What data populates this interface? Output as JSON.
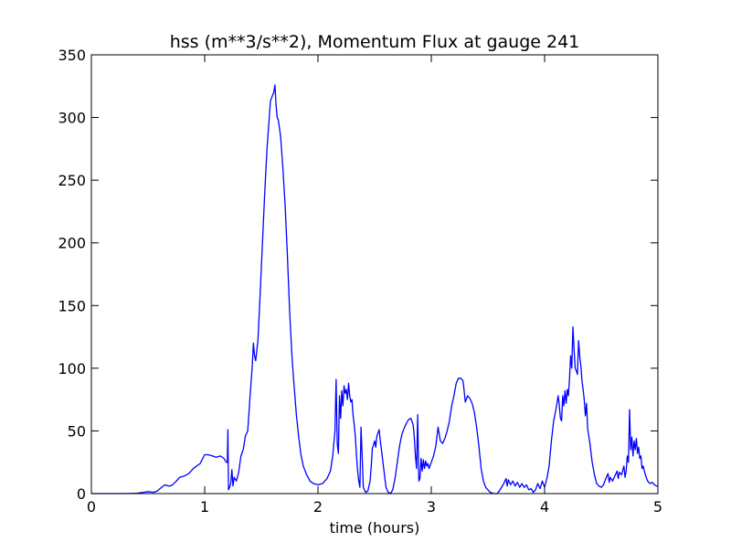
{
  "chart_data": {
    "type": "line",
    "title": "hss (m**3/s**2), Momentum Flux at gauge 241",
    "xlabel": "time (hours)",
    "ylabel": "",
    "xlim": [
      0,
      5
    ],
    "ylim": [
      0,
      350
    ],
    "x_ticks": [
      0,
      1,
      2,
      3,
      4,
      5
    ],
    "x_tick_labels": [
      "0",
      "1",
      "2",
      "3",
      "4",
      "5"
    ],
    "y_ticks": [
      0,
      50,
      100,
      150,
      200,
      250,
      300,
      350
    ],
    "y_tick_labels": [
      "0",
      "50",
      "100",
      "150",
      "200",
      "250",
      "300",
      "350"
    ],
    "grid": false,
    "legend": "none",
    "reference_line": {
      "y": 0,
      "style": "dashed",
      "color": "#000000"
    },
    "series": [
      {
        "color": "#0000ff",
        "points": [
          [
            0.0,
            0
          ],
          [
            0.3,
            0
          ],
          [
            0.4,
            0.3
          ],
          [
            0.46,
            1
          ],
          [
            0.5,
            1.5
          ],
          [
            0.55,
            1
          ],
          [
            0.58,
            2
          ],
          [
            0.62,
            5
          ],
          [
            0.65,
            7
          ],
          [
            0.68,
            6
          ],
          [
            0.71,
            6.5
          ],
          [
            0.75,
            10
          ],
          [
            0.78,
            13
          ],
          [
            0.82,
            14
          ],
          [
            0.86,
            16
          ],
          [
            0.9,
            20
          ],
          [
            0.93,
            22
          ],
          [
            0.96,
            24
          ],
          [
            1.0,
            31
          ],
          [
            1.03,
            31
          ],
          [
            1.07,
            30
          ],
          [
            1.1,
            29
          ],
          [
            1.14,
            30
          ],
          [
            1.17,
            28
          ],
          [
            1.19,
            25
          ],
          [
            1.2,
            25
          ],
          [
            1.205,
            51
          ],
          [
            1.21,
            3
          ],
          [
            1.22,
            5
          ],
          [
            1.23,
            8
          ],
          [
            1.24,
            19
          ],
          [
            1.25,
            6
          ],
          [
            1.26,
            13
          ],
          [
            1.28,
            10
          ],
          [
            1.3,
            17
          ],
          [
            1.32,
            30
          ],
          [
            1.34,
            35
          ],
          [
            1.36,
            46
          ],
          [
            1.38,
            50
          ],
          [
            1.4,
            77
          ],
          [
            1.42,
            102
          ],
          [
            1.43,
            120
          ],
          [
            1.44,
            110
          ],
          [
            1.45,
            106
          ],
          [
            1.47,
            122
          ],
          [
            1.49,
            160
          ],
          [
            1.51,
            200
          ],
          [
            1.53,
            240
          ],
          [
            1.55,
            275
          ],
          [
            1.57,
            300
          ],
          [
            1.58,
            313
          ],
          [
            1.6,
            318
          ],
          [
            1.61,
            320
          ],
          [
            1.62,
            326
          ],
          [
            1.63,
            310
          ],
          [
            1.64,
            300
          ],
          [
            1.65,
            298
          ],
          [
            1.67,
            285
          ],
          [
            1.69,
            260
          ],
          [
            1.71,
            230
          ],
          [
            1.73,
            190
          ],
          [
            1.75,
            145
          ],
          [
            1.77,
            110
          ],
          [
            1.79,
            85
          ],
          [
            1.81,
            62
          ],
          [
            1.83,
            45
          ],
          [
            1.85,
            31
          ],
          [
            1.87,
            22
          ],
          [
            1.9,
            15
          ],
          [
            1.93,
            10
          ],
          [
            1.96,
            8
          ],
          [
            2.0,
            7
          ],
          [
            2.04,
            8
          ],
          [
            2.08,
            12
          ],
          [
            2.11,
            18
          ],
          [
            2.13,
            30
          ],
          [
            2.15,
            50
          ],
          [
            2.16,
            91
          ],
          [
            2.17,
            40
          ],
          [
            2.18,
            32
          ],
          [
            2.19,
            78
          ],
          [
            2.2,
            60
          ],
          [
            2.21,
            82
          ],
          [
            2.22,
            70
          ],
          [
            2.23,
            86
          ],
          [
            2.24,
            80
          ],
          [
            2.25,
            83
          ],
          [
            2.26,
            75
          ],
          [
            2.27,
            88
          ],
          [
            2.28,
            78
          ],
          [
            2.29,
            73
          ],
          [
            2.3,
            75
          ],
          [
            2.31,
            62
          ],
          [
            2.32,
            55
          ],
          [
            2.33,
            45
          ],
          [
            2.34,
            30
          ],
          [
            2.35,
            18
          ],
          [
            2.36,
            10
          ],
          [
            2.37,
            5
          ],
          [
            2.38,
            53
          ],
          [
            2.39,
            30
          ],
          [
            2.4,
            5
          ],
          [
            2.42,
            1
          ],
          [
            2.44,
            2
          ],
          [
            2.46,
            10
          ],
          [
            2.47,
            22
          ],
          [
            2.48,
            36
          ],
          [
            2.5,
            42
          ],
          [
            2.51,
            37
          ],
          [
            2.52,
            46
          ],
          [
            2.54,
            51
          ],
          [
            2.55,
            42
          ],
          [
            2.56,
            35
          ],
          [
            2.58,
            20
          ],
          [
            2.6,
            5
          ],
          [
            2.62,
            1
          ],
          [
            2.64,
            0
          ],
          [
            2.66,
            3
          ],
          [
            2.68,
            12
          ],
          [
            2.7,
            25
          ],
          [
            2.72,
            38
          ],
          [
            2.74,
            47
          ],
          [
            2.76,
            52
          ],
          [
            2.78,
            56
          ],
          [
            2.8,
            59
          ],
          [
            2.82,
            60
          ],
          [
            2.84,
            55
          ],
          [
            2.85,
            45
          ],
          [
            2.86,
            30
          ],
          [
            2.87,
            20
          ],
          [
            2.88,
            63
          ],
          [
            2.89,
            10
          ],
          [
            2.9,
            12
          ],
          [
            2.91,
            28
          ],
          [
            2.92,
            18
          ],
          [
            2.93,
            27
          ],
          [
            2.94,
            20
          ],
          [
            2.95,
            26
          ],
          [
            2.96,
            22
          ],
          [
            2.97,
            24
          ],
          [
            2.98,
            20
          ],
          [
            3.0,
            25
          ],
          [
            3.02,
            30
          ],
          [
            3.04,
            38
          ],
          [
            3.06,
            53
          ],
          [
            3.08,
            42
          ],
          [
            3.1,
            40
          ],
          [
            3.12,
            44
          ],
          [
            3.14,
            50
          ],
          [
            3.16,
            58
          ],
          [
            3.18,
            70
          ],
          [
            3.2,
            78
          ],
          [
            3.22,
            88
          ],
          [
            3.24,
            92
          ],
          [
            3.26,
            92
          ],
          [
            3.28,
            90
          ],
          [
            3.29,
            82
          ],
          [
            3.3,
            73
          ],
          [
            3.32,
            78
          ],
          [
            3.34,
            76
          ],
          [
            3.36,
            72
          ],
          [
            3.38,
            65
          ],
          [
            3.4,
            53
          ],
          [
            3.42,
            38
          ],
          [
            3.44,
            20
          ],
          [
            3.46,
            10
          ],
          [
            3.48,
            5
          ],
          [
            3.5,
            3
          ],
          [
            3.52,
            1
          ],
          [
            3.55,
            0
          ],
          [
            3.58,
            0
          ],
          [
            3.6,
            2
          ],
          [
            3.62,
            5
          ],
          [
            3.64,
            8
          ],
          [
            3.66,
            12
          ],
          [
            3.67,
            6
          ],
          [
            3.68,
            11
          ],
          [
            3.7,
            7
          ],
          [
            3.72,
            10
          ],
          [
            3.74,
            6
          ],
          [
            3.76,
            9
          ],
          [
            3.78,
            5
          ],
          [
            3.8,
            8
          ],
          [
            3.82,
            5
          ],
          [
            3.84,
            7
          ],
          [
            3.86,
            3
          ],
          [
            3.88,
            4
          ],
          [
            3.9,
            1
          ],
          [
            3.92,
            3
          ],
          [
            3.94,
            8
          ],
          [
            3.96,
            4
          ],
          [
            3.98,
            10
          ],
          [
            4.0,
            5
          ],
          [
            4.02,
            12
          ],
          [
            4.04,
            22
          ],
          [
            4.06,
            42
          ],
          [
            4.08,
            58
          ],
          [
            4.1,
            67
          ],
          [
            4.12,
            78
          ],
          [
            4.13,
            70
          ],
          [
            4.14,
            60
          ],
          [
            4.15,
            58
          ],
          [
            4.16,
            78
          ],
          [
            4.17,
            70
          ],
          [
            4.18,
            82
          ],
          [
            4.19,
            72
          ],
          [
            4.2,
            83
          ],
          [
            4.21,
            78
          ],
          [
            4.22,
            92
          ],
          [
            4.23,
            110
          ],
          [
            4.24,
            100
          ],
          [
            4.25,
            133
          ],
          [
            4.26,
            115
          ],
          [
            4.27,
            100
          ],
          [
            4.28,
            98
          ],
          [
            4.29,
            95
          ],
          [
            4.3,
            122
          ],
          [
            4.31,
            110
          ],
          [
            4.32,
            102
          ],
          [
            4.33,
            90
          ],
          [
            4.34,
            83
          ],
          [
            4.35,
            75
          ],
          [
            4.36,
            62
          ],
          [
            4.37,
            72
          ],
          [
            4.38,
            52
          ],
          [
            4.4,
            40
          ],
          [
            4.42,
            25
          ],
          [
            4.44,
            15
          ],
          [
            4.46,
            8
          ],
          [
            4.48,
            6
          ],
          [
            4.5,
            5
          ],
          [
            4.52,
            7
          ],
          [
            4.54,
            12
          ],
          [
            4.56,
            16
          ],
          [
            4.57,
            9
          ],
          [
            4.58,
            13
          ],
          [
            4.6,
            10
          ],
          [
            4.62,
            14
          ],
          [
            4.64,
            18
          ],
          [
            4.65,
            12
          ],
          [
            4.66,
            17
          ],
          [
            4.68,
            15
          ],
          [
            4.7,
            22
          ],
          [
            4.71,
            13
          ],
          [
            4.72,
            18
          ],
          [
            4.73,
            30
          ],
          [
            4.74,
            25
          ],
          [
            4.75,
            67
          ],
          [
            4.76,
            35
          ],
          [
            4.77,
            45
          ],
          [
            4.78,
            30
          ],
          [
            4.79,
            42
          ],
          [
            4.8,
            35
          ],
          [
            4.81,
            44
          ],
          [
            4.82,
            32
          ],
          [
            4.83,
            37
          ],
          [
            4.84,
            28
          ],
          [
            4.85,
            30
          ],
          [
            4.86,
            20
          ],
          [
            4.87,
            22
          ],
          [
            4.88,
            18
          ],
          [
            4.89,
            15
          ],
          [
            4.9,
            12
          ],
          [
            4.91,
            10
          ],
          [
            4.93,
            8
          ],
          [
            4.95,
            9
          ],
          [
            4.97,
            7
          ],
          [
            4.99,
            6
          ],
          [
            5.0,
            6
          ]
        ]
      }
    ]
  }
}
